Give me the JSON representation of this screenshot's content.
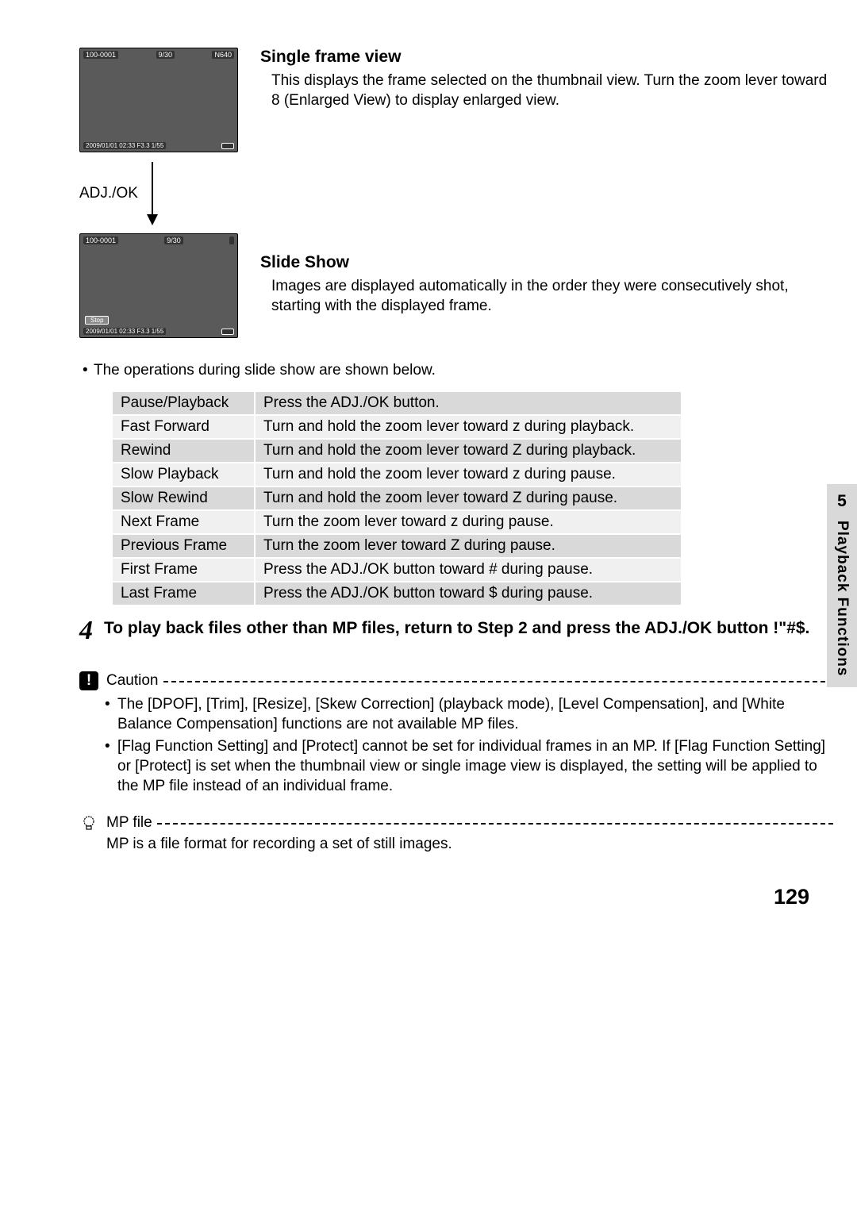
{
  "preview1": {
    "top_left": "100-0001",
    "top_mid": "9/30",
    "top_right": "N640",
    "bottom_left": "2009/01/01 02:33 F3.3 1/55"
  },
  "arrow_label": "ADJ./OK",
  "preview2": {
    "top_left": "100-0001",
    "top_mid": "9/30",
    "stop": "Stop",
    "bottom_left": "2009/01/01 02:33 F3.3 1/55"
  },
  "single_frame": {
    "title": "Single frame view",
    "body": "This displays the frame selected on the thumbnail view. Turn the zoom lever toward 8 (Enlarged View) to display enlarged view."
  },
  "slide_show": {
    "title": "Slide Show",
    "body": "Images are displayed automatically in the order they were consecutively shot, starting with the displayed frame."
  },
  "ops_intro": "The operations during slide show are shown below.",
  "ops_table": [
    [
      "Pause/Playback",
      "Press the ADJ./OK button."
    ],
    [
      "Fast Forward",
      "Turn and hold the zoom lever toward z during playback."
    ],
    [
      "Rewind",
      "Turn and hold the zoom lever toward Z during playback."
    ],
    [
      "Slow Playback",
      "Turn and hold the zoom lever toward z during pause."
    ],
    [
      "Slow Rewind",
      "Turn and hold the zoom lever toward Z during pause."
    ],
    [
      "Next Frame",
      "Turn the zoom lever toward z during pause."
    ],
    [
      "Previous Frame",
      "Turn the zoom lever toward Z during pause."
    ],
    [
      "First Frame",
      "Press the ADJ./OK button toward # during pause."
    ],
    [
      "Last Frame",
      "Press the ADJ./OK button toward $ during pause."
    ]
  ],
  "step4": {
    "num": "4",
    "text": "To play back files other than MP files, return to Step 2 and press the ADJ./OK button !\"#$."
  },
  "caution": {
    "label": "Caution",
    "items": [
      "The [DPOF], [Trim], [Resize], [Skew Correction] (playback mode), [Level Compensation], and [White Balance Compensation] functions are not available MP files.",
      "[Flag Function Setting] and [Protect] cannot be set for individual frames in an MP. If [Flag Function Setting] or [Protect] is set when the thumbnail view or single image view is displayed, the setting will be applied to the MP file instead of an individual frame."
    ]
  },
  "note": {
    "label": "MP file",
    "body": "MP is a file format for recording a set of still images."
  },
  "side": {
    "num": "5",
    "label": "Playback Functions"
  },
  "page_number": "129"
}
